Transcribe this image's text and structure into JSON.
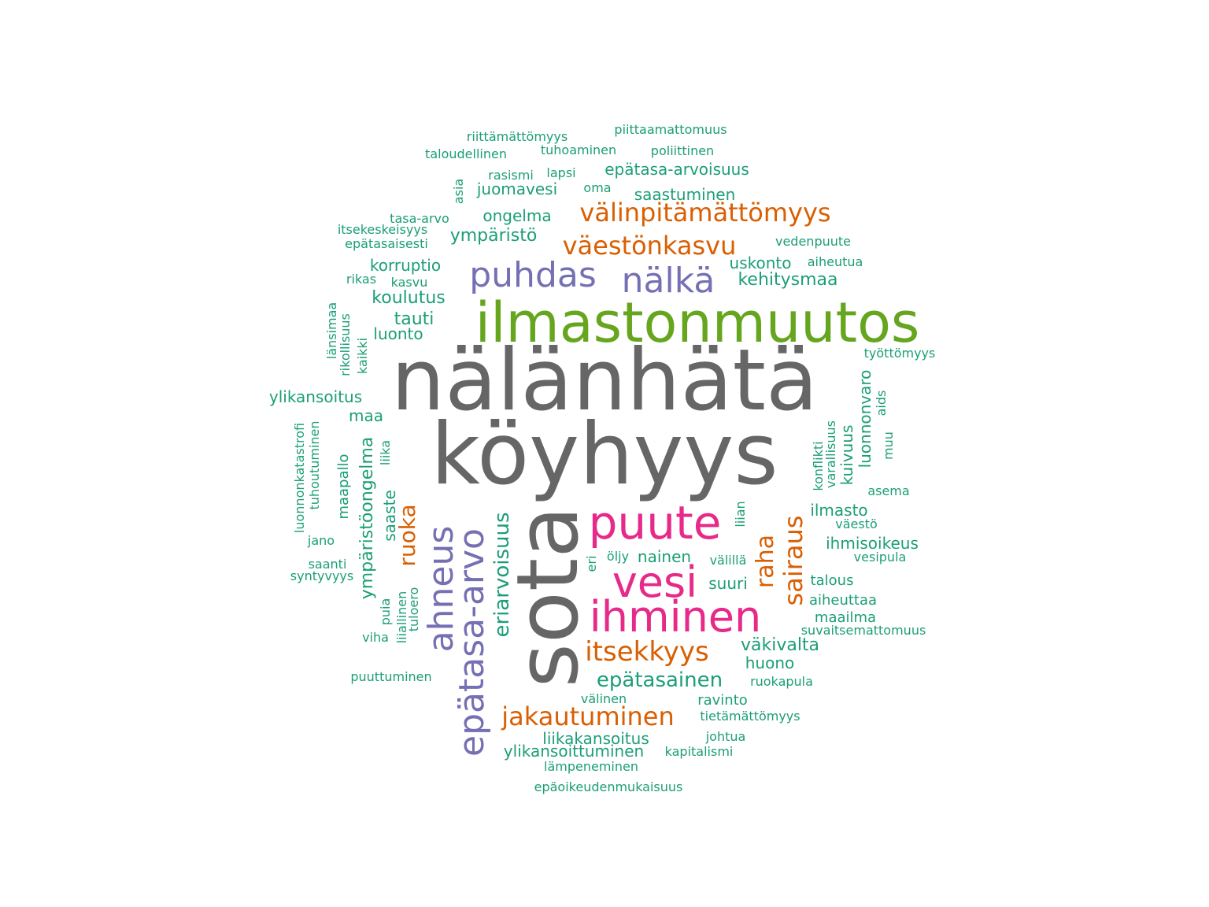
{
  "palette": {
    "gray": "#666666",
    "green": "#66A61E",
    "teal": "#1B9E77",
    "orange": "#D95F02",
    "purple": "#7570B3",
    "pink": "#E7298A"
  },
  "words": [
    {
      "text": "nälänhätä",
      "color": "gray"
    },
    {
      "text": "köyhyys",
      "color": "gray"
    },
    {
      "text": "sota",
      "color": "gray"
    },
    {
      "text": "ilmastonmuutos",
      "color": "green"
    },
    {
      "text": "puute",
      "color": "pink"
    },
    {
      "text": "vesi",
      "color": "pink"
    },
    {
      "text": "ihminen",
      "color": "pink"
    },
    {
      "text": "epätasa-arvo",
      "color": "purple"
    },
    {
      "text": "ahneus",
      "color": "purple"
    },
    {
      "text": "puhdas",
      "color": "purple"
    },
    {
      "text": "nälkä",
      "color": "purple"
    },
    {
      "text": "välinpitämättömyys",
      "color": "orange"
    },
    {
      "text": "väestönkasvu",
      "color": "orange"
    },
    {
      "text": "itsekkyys",
      "color": "orange"
    },
    {
      "text": "jakautuminen",
      "color": "orange"
    },
    {
      "text": "sairaus",
      "color": "orange"
    },
    {
      "text": "raha",
      "color": "orange"
    },
    {
      "text": "ruoka",
      "color": "orange"
    },
    {
      "text": "eriarvoisuus",
      "color": "teal"
    },
    {
      "text": "epätasainen",
      "color": "teal"
    },
    {
      "text": "ympäristöongelma",
      "color": "teal"
    },
    {
      "text": "riittämättömyys",
      "color": "teal"
    },
    {
      "text": "piittaamattomuus",
      "color": "teal"
    },
    {
      "text": "taloudellinen",
      "color": "teal"
    },
    {
      "text": "tuhoaminen",
      "color": "teal"
    },
    {
      "text": "poliittinen",
      "color": "teal"
    },
    {
      "text": "rasismi",
      "color": "teal"
    },
    {
      "text": "lapsi",
      "color": "teal"
    },
    {
      "text": "epätasa-arvoisuus",
      "color": "teal"
    },
    {
      "text": "asia",
      "color": "teal"
    },
    {
      "text": "juomavesi",
      "color": "teal"
    },
    {
      "text": "oma",
      "color": "teal"
    },
    {
      "text": "saastuminen",
      "color": "teal"
    },
    {
      "text": "tasa-arvo",
      "color": "teal"
    },
    {
      "text": "ongelma",
      "color": "teal"
    },
    {
      "text": "itsekeskeisyys",
      "color": "teal"
    },
    {
      "text": "ympäristö",
      "color": "teal"
    },
    {
      "text": "vedenpuute",
      "color": "teal"
    },
    {
      "text": "epätasaisesti",
      "color": "teal"
    },
    {
      "text": "korruptio",
      "color": "teal"
    },
    {
      "text": "uskonto",
      "color": "teal"
    },
    {
      "text": "aiheutua",
      "color": "teal"
    },
    {
      "text": "rikas",
      "color": "teal"
    },
    {
      "text": "kasvu",
      "color": "teal"
    },
    {
      "text": "kehitysmaa",
      "color": "teal"
    },
    {
      "text": "koulutus",
      "color": "teal"
    },
    {
      "text": "länsimaa",
      "color": "teal"
    },
    {
      "text": "rikollisuus",
      "color": "teal"
    },
    {
      "text": "tauti",
      "color": "teal"
    },
    {
      "text": "luonto",
      "color": "teal"
    },
    {
      "text": "kaikki",
      "color": "teal"
    },
    {
      "text": "työttömyys",
      "color": "teal"
    },
    {
      "text": "ylikansoitus",
      "color": "teal"
    },
    {
      "text": "luonnonvaro",
      "color": "teal"
    },
    {
      "text": "aids",
      "color": "teal"
    },
    {
      "text": "maa",
      "color": "teal"
    },
    {
      "text": "luonnonkatastrofi",
      "color": "teal"
    },
    {
      "text": "tuhoutuminen",
      "color": "teal"
    },
    {
      "text": "liika",
      "color": "teal"
    },
    {
      "text": "kuivuus",
      "color": "teal"
    },
    {
      "text": "varallisuus",
      "color": "teal"
    },
    {
      "text": "konflikti",
      "color": "teal"
    },
    {
      "text": "muu",
      "color": "teal"
    },
    {
      "text": "maapallo",
      "color": "teal"
    },
    {
      "text": "saaste",
      "color": "teal"
    },
    {
      "text": "asema",
      "color": "teal"
    },
    {
      "text": "liian",
      "color": "teal"
    },
    {
      "text": "ilmasto",
      "color": "teal"
    },
    {
      "text": "väestö",
      "color": "teal"
    },
    {
      "text": "jano",
      "color": "teal"
    },
    {
      "text": "ihmisoikeus",
      "color": "teal"
    },
    {
      "text": "öljy",
      "color": "teal"
    },
    {
      "text": "nainen",
      "color": "teal"
    },
    {
      "text": "vesipula",
      "color": "teal"
    },
    {
      "text": "saanti",
      "color": "teal"
    },
    {
      "text": "eri",
      "color": "teal"
    },
    {
      "text": "välillä",
      "color": "teal"
    },
    {
      "text": "syntyvyys",
      "color": "teal"
    },
    {
      "text": "suuri",
      "color": "teal"
    },
    {
      "text": "talous",
      "color": "teal"
    },
    {
      "text": "puia",
      "color": "teal"
    },
    {
      "text": "liiallinen",
      "color": "teal"
    },
    {
      "text": "tuloero",
      "color": "teal"
    },
    {
      "text": "aiheuttaa",
      "color": "teal"
    },
    {
      "text": "maailma",
      "color": "teal"
    },
    {
      "text": "viha",
      "color": "teal"
    },
    {
      "text": "suvaitsemattomuus",
      "color": "teal"
    },
    {
      "text": "väkivalta",
      "color": "teal"
    },
    {
      "text": "huono",
      "color": "teal"
    },
    {
      "text": "puuttuminen",
      "color": "teal"
    },
    {
      "text": "ruokapula",
      "color": "teal"
    },
    {
      "text": "välinen",
      "color": "teal"
    },
    {
      "text": "ravinto",
      "color": "teal"
    },
    {
      "text": "tietämättömyys",
      "color": "teal"
    },
    {
      "text": "liikakansoitus",
      "color": "teal"
    },
    {
      "text": "johtua",
      "color": "teal"
    },
    {
      "text": "ylikansoittuminen",
      "color": "teal"
    },
    {
      "text": "kapitalismi",
      "color": "teal"
    },
    {
      "text": "lämpeneminen",
      "color": "teal"
    },
    {
      "text": "epäoikeudenmukaisuus",
      "color": "teal"
    }
  ]
}
